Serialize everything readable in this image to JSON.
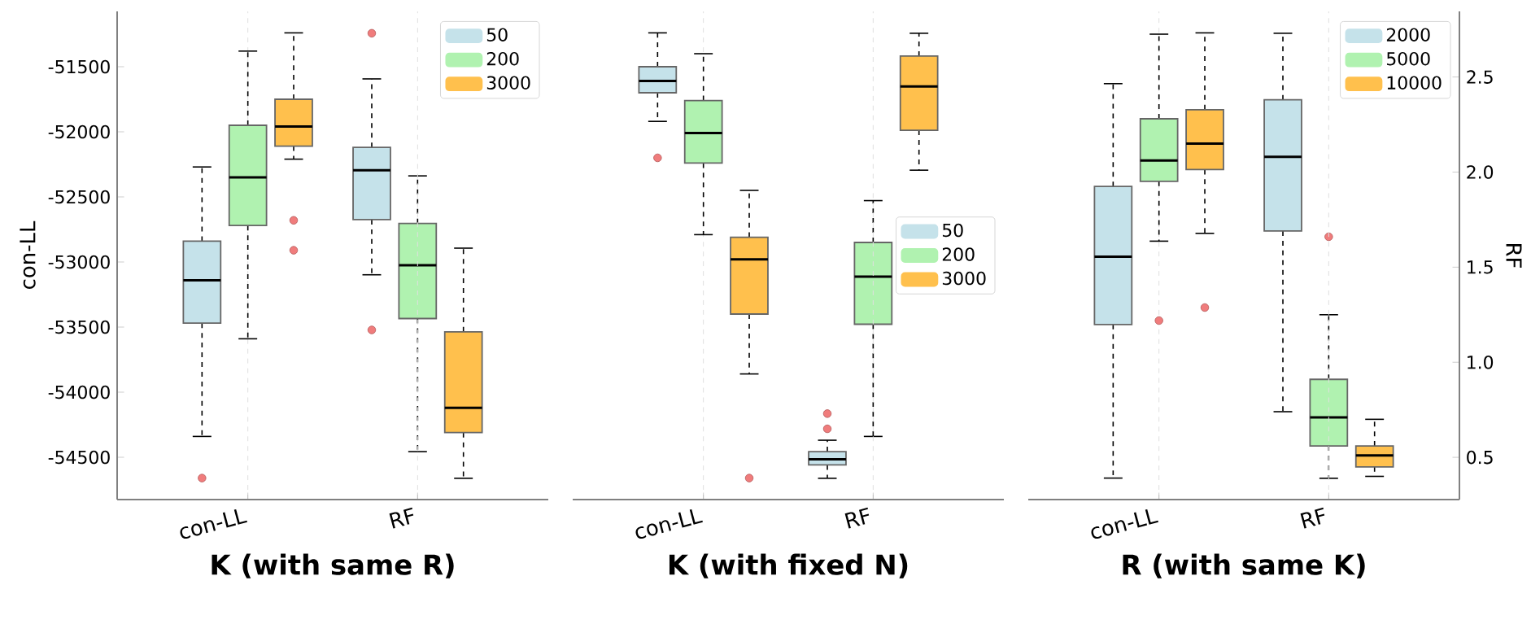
{
  "chart_data": [
    {
      "type": "box",
      "xlabel": "K (with same R)",
      "ylabel": "con-LL",
      "categories": [
        "con-LL",
        "RF"
      ],
      "ylim": [
        -54825,
        -51075
      ],
      "yticks": [
        -51500,
        -52000,
        -52500,
        -53000,
        -53500,
        -54000,
        -54500
      ],
      "y2lim": [
        0.278,
        2.845
      ],
      "tick_labels": [
        "x",
        "y"
      ],
      "grid": "x",
      "legend": "top right",
      "series": [
        {
          "name": "50",
          "color": "#c5e2ea",
          "boxes": [
            {
              "low": -54340,
              "q1": -53470,
              "median": -53140,
              "q3": -52840,
              "high": -52270,
              "outliers": [
                -54660
              ]
            },
            null
          ]
        },
        {
          "name": "200",
          "color": "#b0f2b0",
          "boxes": [
            {
              "low": -53590,
              "q1": -52720,
              "median": -52350,
              "q3": -51950,
              "high": -51380
            },
            null
          ]
        },
        {
          "name": "3000",
          "color": "#ffc04d",
          "boxes": [
            {
              "low": -52210,
              "q1": -52110,
              "median": -51960,
              "q3": -51750,
              "high": -51240,
              "outliers": [
                -52680,
                -52910
              ]
            },
            null
          ]
        },
        {
          "color": "#c5e2ea",
          "axis": "y2",
          "boxes": [
            null,
            {
              "low": 1.46,
              "q1": 1.75,
              "median": 2.01,
              "q3": 2.13,
              "high": 2.49,
              "outliers": [
                2.73,
                1.17
              ]
            }
          ]
        },
        {
          "color": "#b0f2b0",
          "axis": "y2",
          "boxes": [
            null,
            {
              "low": 0.53,
              "q1": 1.23,
              "median": 1.51,
              "q3": 1.73,
              "high": 1.98
            }
          ]
        },
        {
          "color": "#ffc04d",
          "axis": "y2",
          "boxes": [
            null,
            {
              "low": 0.39,
              "q1": 0.63,
              "median": 0.76,
              "q3": 1.16,
              "high": 1.6
            }
          ]
        }
      ]
    },
    {
      "type": "box",
      "xlabel": "K (with fixed N)",
      "categories": [
        "con-LL",
        "RF"
      ],
      "ylim": [
        -54825,
        -51075
      ],
      "y2lim": [
        0.278,
        2.845
      ],
      "tick_labels": "x",
      "grid": "x",
      "legend": "right",
      "series": [
        {
          "name": "50",
          "color": "#c5e2ea",
          "boxes": [
            {
              "low": -51920,
              "q1": -51700,
              "median": -51610,
              "q3": -51500,
              "high": -51240,
              "outliers": [
                -52200
              ]
            },
            null
          ]
        },
        {
          "name": "200",
          "color": "#b0f2b0",
          "boxes": [
            {
              "low": -52790,
              "q1": -52240,
              "median": -52010,
              "q3": -51760,
              "high": -51400
            },
            null
          ]
        },
        {
          "name": "3000",
          "color": "#ffc04d",
          "boxes": [
            {
              "low": -53860,
              "q1": -53400,
              "median": -52980,
              "q3": -52810,
              "high": -52450,
              "outliers": [
                -54660
              ]
            },
            null
          ]
        },
        {
          "color": "#c5e2ea",
          "axis": "y2",
          "boxes": [
            null,
            {
              "low": 0.39,
              "q1": 0.46,
              "median": 0.49,
              "q3": 0.53,
              "high": 0.59,
              "outliers": [
                0.73,
                0.65
              ]
            }
          ]
        },
        {
          "color": "#b0f2b0",
          "axis": "y2",
          "boxes": [
            null,
            {
              "low": 0.61,
              "q1": 1.2,
              "median": 1.45,
              "q3": 1.63,
              "high": 1.85
            }
          ]
        },
        {
          "color": "#ffc04d",
          "axis": "y2",
          "boxes": [
            null,
            {
              "low": 2.01,
              "q1": 2.22,
              "median": 2.45,
              "q3": 2.61,
              "high": 2.73
            }
          ]
        }
      ]
    },
    {
      "type": "box",
      "xlabel": "R (with same K)",
      "y2label": "RF",
      "categories": [
        "con-LL",
        "RF"
      ],
      "ylim": [
        -54825,
        -51075
      ],
      "y2lim": [
        0.278,
        2.845
      ],
      "y2ticks": [
        {
          "value": 0.5,
          "label": "0.5"
        },
        {
          "value": 1,
          "label": "1.0"
        },
        {
          "value": 1.5,
          "label": "1.5"
        },
        {
          "value": 2,
          "label": "2.0"
        },
        {
          "value": 2.5,
          "label": "2.5"
        }
      ],
      "tick_labels": [
        "x",
        "y2"
      ],
      "grid": "x",
      "legend": "top right",
      "series": [
        {
          "name": "2000",
          "color": "#c5e2ea",
          "boxes": [
            {
              "low": -54660,
              "q1": -53480,
              "median": -52960,
              "q3": -52420,
              "high": -51630
            },
            null
          ]
        },
        {
          "name": "5000",
          "color": "#b0f2b0",
          "boxes": [
            {
              "low": -52840,
              "q1": -52380,
              "median": -52220,
              "q3": -51900,
              "high": -51250,
              "outliers": [
                -53450
              ]
            },
            null
          ]
        },
        {
          "name": "10000",
          "color": "#ffc04d",
          "boxes": [
            {
              "low": -52780,
              "q1": -52290,
              "median": -52090,
              "q3": -51830,
              "high": -51240,
              "outliers": [
                -53350
              ]
            },
            null
          ]
        },
        {
          "color": "#c5e2ea",
          "axis": "y2",
          "boxes": [
            null,
            {
              "low": 0.74,
              "q1": 1.69,
              "median": 2.08,
              "q3": 2.38,
              "high": 2.73
            }
          ]
        },
        {
          "color": "#b0f2b0",
          "axis": "y2",
          "boxes": [
            null,
            {
              "low": 0.39,
              "q1": 0.56,
              "median": 0.71,
              "q3": 0.91,
              "high": 1.25,
              "outliers": [
                1.66
              ]
            }
          ]
        },
        {
          "color": "#ffc04d",
          "axis": "y2",
          "boxes": [
            null,
            {
              "low": 0.4,
              "q1": 0.45,
              "median": 0.51,
              "q3": 0.56,
              "high": 0.7
            }
          ]
        }
      ]
    }
  ]
}
